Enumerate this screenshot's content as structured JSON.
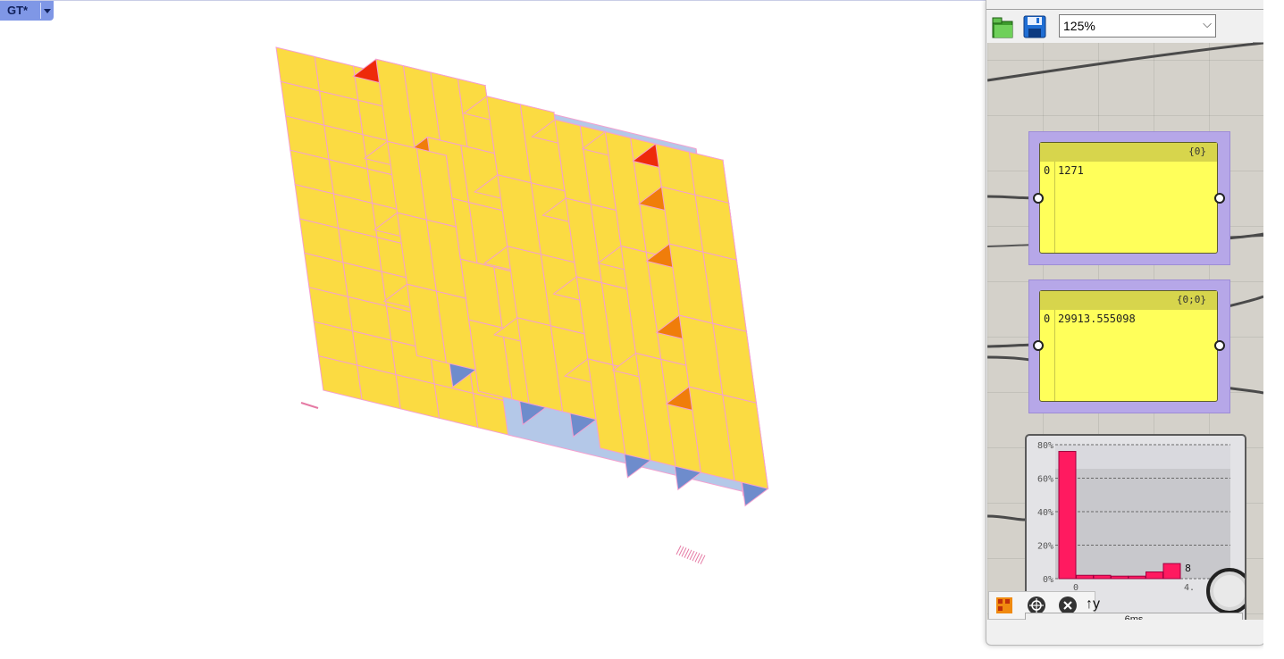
{
  "viewport": {
    "label": "GT*",
    "colors": {
      "face_yellow": "#fbdb42",
      "face_red": "#ee2a0a",
      "face_orange": "#f07d0a",
      "face_blue": "#6e8ccc",
      "face_lightblue": "#b4c8e8",
      "edge_pink": "#f4a0d0"
    }
  },
  "toolbar": {
    "open_icon": "open-file-icon",
    "save_icon": "save-disk-icon",
    "zoom": "125%"
  },
  "canvas": {
    "panel1": {
      "path": "{0}",
      "index": "0",
      "value": "1271"
    },
    "panel2": {
      "path": "{0;0}",
      "index": "0",
      "value": "29913.555098"
    }
  },
  "histogram": {
    "count_label": "8",
    "x_left_label": "0",
    "x_right_label": "4.",
    "chart_data": {
      "type": "bar",
      "values": [
        76,
        2,
        2,
        1.5,
        1.5,
        4,
        9,
        0
      ],
      "yticks": [
        "0%",
        "20%",
        "40%",
        "60%",
        "80%"
      ],
      "ylim": [
        0,
        80
      ],
      "bar_color": "#ff1a60"
    }
  },
  "bottom_tools": {
    "items": [
      "swatch-icon",
      "cluster-icon",
      "close-x-icon",
      "arrow-y-icon"
    ],
    "arrow_y_label": "↑y"
  },
  "status": {
    "time": "6ms"
  }
}
